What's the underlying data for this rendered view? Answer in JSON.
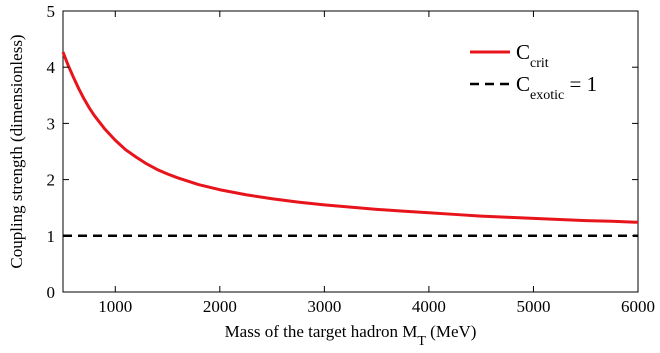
{
  "chart_data": {
    "type": "line",
    "title": "",
    "xlabel": {
      "main": "Mass of the target hadron M",
      "sub": "T",
      "unit": " (MeV)"
    },
    "ylabel": "Coupling strength (dimensionless)",
    "xlim": [
      500,
      6000
    ],
    "ylim": [
      0,
      5
    ],
    "xticks": [
      1000,
      2000,
      3000,
      4000,
      5000,
      6000
    ],
    "yticks": [
      0,
      1,
      2,
      3,
      4,
      5
    ],
    "grid": false,
    "legend": "top-right",
    "series": [
      {
        "name": {
          "main": "C",
          "sub": "crit",
          "suffix": ""
        },
        "color": "#e8141c",
        "style": "solid",
        "x": [
          500,
          550,
          600,
          650,
          700,
          750,
          800,
          900,
          1000,
          1100,
          1200,
          1300,
          1400,
          1500,
          1600,
          1800,
          2000,
          2250,
          2500,
          2750,
          3000,
          3250,
          3500,
          3750,
          4000,
          4250,
          4500,
          4750,
          5000,
          5250,
          5500,
          5750,
          6000
        ],
        "y": [
          4.27,
          4.03,
          3.82,
          3.62,
          3.44,
          3.28,
          3.14,
          2.9,
          2.7,
          2.53,
          2.4,
          2.28,
          2.18,
          2.1,
          2.03,
          1.91,
          1.82,
          1.73,
          1.66,
          1.6,
          1.55,
          1.51,
          1.47,
          1.44,
          1.41,
          1.38,
          1.35,
          1.33,
          1.31,
          1.29,
          1.27,
          1.26,
          1.24
        ]
      },
      {
        "name": {
          "main": "C",
          "sub": "exotic",
          "suffix": " = 1"
        },
        "color": "#000000",
        "style": "dashed",
        "x": [
          500,
          6000
        ],
        "y": [
          1,
          1
        ]
      }
    ]
  }
}
